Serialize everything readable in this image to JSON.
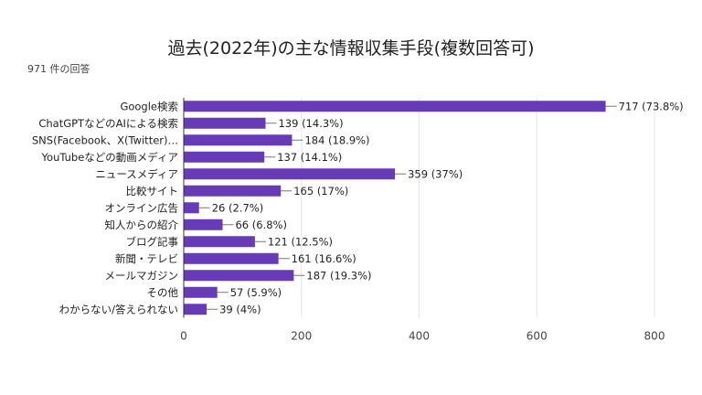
{
  "header": {
    "title": "過去(2022年)の主な情報収集手段(複数回答可)",
    "response_count": "971 件の回答"
  },
  "chart_data": {
    "type": "bar",
    "orientation": "horizontal",
    "title": "過去(2022年)の主な情報収集手段(複数回答可)",
    "subtitle": "971 件の回答",
    "categories": [
      "Google検索",
      "ChatGPTなどのAIによる検索",
      "SNS(Facebook、X(Twitter)…",
      "YouTubeなどの動画メディア",
      "ニュースメディア",
      "比較サイト",
      "オンライン広告",
      "知人からの紹介",
      "ブログ記事",
      "新聞・テレビ",
      "メールマガジン",
      "その他",
      "わからない/答えられない"
    ],
    "values": [
      717,
      139,
      184,
      137,
      359,
      165,
      26,
      66,
      121,
      161,
      187,
      57,
      39
    ],
    "data_labels": [
      "717 (73.8%)",
      "139 (14.3%)",
      "184 (18.9%)",
      "137 (14.1%)",
      "359 (37%)",
      "165 (17%)",
      "26 (2.7%)",
      "66 (6.8%)",
      "121 (12.5%)",
      "161 (16.6%)",
      "187 (19.3%)",
      "57 (5.9%)",
      "39 (4%)"
    ],
    "xlim": [
      0,
      800
    ],
    "xticks": [
      0,
      200,
      400,
      600,
      800
    ],
    "grid": true,
    "bar_color": "#673ab7"
  }
}
